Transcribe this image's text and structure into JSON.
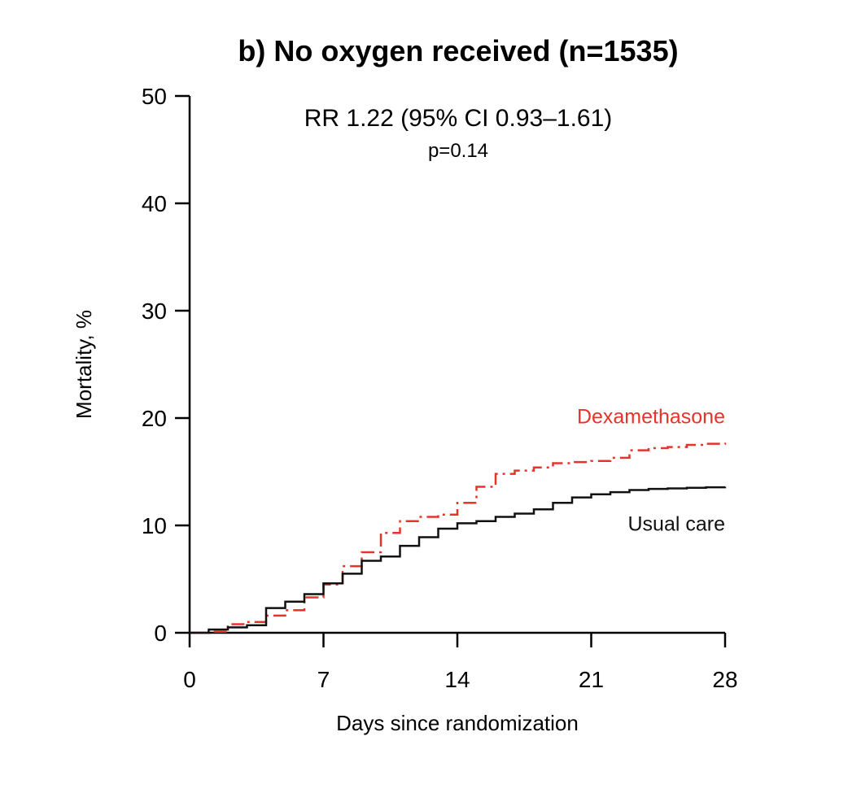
{
  "chart_data": {
    "type": "line",
    "title": "b) No oxygen received (n=1535)",
    "annotation_main": "RR 1.22 (95% CI 0.93–1.61)",
    "annotation_p": "p=0.14",
    "xlabel": "Days since randomization",
    "ylabel": "Mortality, %",
    "xlim": [
      0,
      28
    ],
    "ylim": [
      0,
      50
    ],
    "xticks": [
      0,
      7,
      14,
      21,
      28
    ],
    "yticks": [
      0,
      10,
      20,
      30,
      40,
      50
    ],
    "grid": false,
    "step": true,
    "series": [
      {
        "name": "Dexamethasone",
        "color": "#e8332a",
        "line_style": "dash-dot",
        "x": [
          0,
          1,
          2,
          3,
          4,
          5,
          6,
          7,
          8,
          9,
          10,
          11,
          12,
          13,
          14,
          15,
          16,
          17,
          18,
          19,
          20,
          21,
          22,
          23,
          24,
          25,
          26,
          27,
          28
        ],
        "y": [
          0,
          0.1,
          0.8,
          1.0,
          1.6,
          2.1,
          3.3,
          4.5,
          6.2,
          7.5,
          9.3,
          10.4,
          10.8,
          11.0,
          12.1,
          13.6,
          14.8,
          15.1,
          15.4,
          15.8,
          15.9,
          16.0,
          16.3,
          17.0,
          17.2,
          17.3,
          17.5,
          17.6,
          17.7
        ]
      },
      {
        "name": "Usual care",
        "color": "#111111",
        "line_style": "solid",
        "x": [
          0,
          1,
          2,
          3,
          4,
          5,
          6,
          7,
          8,
          9,
          10,
          11,
          12,
          13,
          14,
          15,
          16,
          17,
          18,
          19,
          20,
          21,
          22,
          23,
          24,
          25,
          26,
          27,
          28
        ],
        "y": [
          0,
          0.3,
          0.5,
          0.7,
          2.3,
          2.9,
          3.6,
          4.6,
          5.5,
          6.7,
          7.1,
          8.1,
          8.9,
          9.7,
          10.2,
          10.4,
          10.8,
          11.1,
          11.5,
          12.1,
          12.6,
          12.9,
          13.1,
          13.3,
          13.4,
          13.45,
          13.5,
          13.55,
          13.6
        ]
      }
    ],
    "series_labels": [
      {
        "series": "Dexamethasone",
        "text": "Dexamethasone",
        "at_x": 28,
        "at_y": 19.5,
        "anchor": "end",
        "color": "#e8332a"
      },
      {
        "series": "Usual care",
        "text": "Usual care",
        "at_x": 28,
        "at_y": 9.5,
        "anchor": "end",
        "color": "#111111"
      }
    ]
  }
}
